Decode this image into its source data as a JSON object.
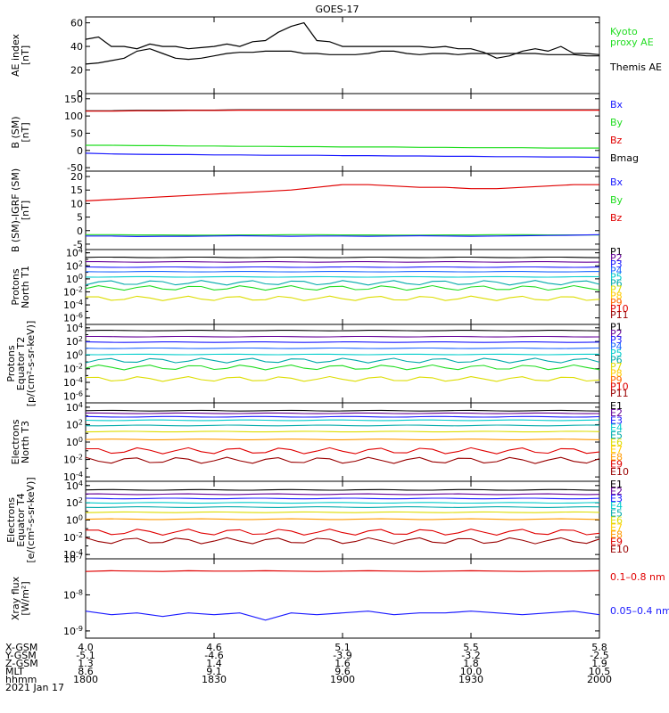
{
  "title": "GOES-17",
  "colors": {
    "black": "#000000",
    "blue": "#1a1aff",
    "green": "#22dd22",
    "red": "#e00000",
    "darkred": "#990000",
    "yellow": "#dddd00",
    "cyan": "#00cccc",
    "orange": "#ff9900",
    "purple": "#660099",
    "navy": "#000099",
    "teal": "#00aaaa"
  },
  "panels": [
    {
      "id": "ae",
      "ylabel": [
        "AE index",
        "[nT]"
      ],
      "ticks": [
        "60",
        "40",
        "20",
        "0"
      ],
      "tick_values": [
        60,
        40,
        20,
        0
      ],
      "ylim": [
        0,
        65
      ],
      "scale": "linear",
      "legend": [
        {
          "text": "Kyoto",
          "color": "#22dd22"
        },
        {
          "text": "proxy AE",
          "color": "#22dd22"
        },
        {
          "text": "Themis AE",
          "color": "#000000"
        }
      ]
    },
    {
      "id": "bsm",
      "ylabel": [
        "B (SM)",
        "[nT]"
      ],
      "ticks": [
        "150",
        "100",
        "50",
        "0",
        "-50"
      ],
      "tick_values": [
        150,
        100,
        50,
        0,
        -50
      ],
      "ylim": [
        -60,
        165
      ],
      "scale": "linear",
      "legend": [
        {
          "text": "Bx",
          "color": "#1a1aff"
        },
        {
          "text": "By",
          "color": "#22dd22"
        },
        {
          "text": "Bz",
          "color": "#e00000"
        },
        {
          "text": "Bmag",
          "color": "#000000"
        }
      ]
    },
    {
      "id": "bigrf",
      "ylabel": [
        "B (SM)-IGRF (SM)",
        "[nT]"
      ],
      "ticks": [
        "20",
        "15",
        "10",
        "5",
        "0",
        "-5"
      ],
      "tick_values": [
        20,
        15,
        10,
        5,
        0,
        -5
      ],
      "ylim": [
        -7,
        22
      ],
      "scale": "linear",
      "legend": [
        {
          "text": "Bx",
          "color": "#1a1aff"
        },
        {
          "text": "By",
          "color": "#22dd22"
        },
        {
          "text": "Bz",
          "color": "#e00000"
        }
      ]
    },
    {
      "id": "pnorth",
      "ylabel": [
        "Protons",
        "North T1"
      ],
      "ticks": [
        "10^4",
        "10^2",
        "10^0",
        "10^-2",
        "10^-4",
        "10^-6"
      ],
      "tick_values": [
        4,
        2,
        0,
        -2,
        -4,
        -6
      ],
      "ylim": [
        -7,
        4.5
      ],
      "scale": "log",
      "legend": [
        {
          "text": "P1",
          "color": "#000000"
        },
        {
          "text": "P2",
          "color": "#660099"
        },
        {
          "text": "P3",
          "color": "#1a1aff"
        },
        {
          "text": "P4",
          "color": "#1a66ff"
        },
        {
          "text": "P5",
          "color": "#00cccc"
        },
        {
          "text": "P6",
          "color": "#00aaaa"
        },
        {
          "text": "P7",
          "color": "#dddd00"
        },
        {
          "text": "P8",
          "color": "#ffcc00"
        },
        {
          "text": "P9",
          "color": "#ff6600"
        },
        {
          "text": "P10",
          "color": "#e00000"
        },
        {
          "text": "P11",
          "color": "#990000"
        }
      ]
    },
    {
      "id": "peq",
      "ylabel": [
        "Protons",
        "Equator T2",
        "[p/(cm²-s-sr-keV)]"
      ],
      "ticks": [
        "10^4",
        "10^2",
        "10^0",
        "10^-2",
        "10^-4",
        "10^-6"
      ],
      "tick_values": [
        4,
        2,
        0,
        -2,
        -4,
        -6
      ],
      "ylim": [
        -7,
        4.5
      ],
      "scale": "log",
      "legend": [
        {
          "text": "P1",
          "color": "#000000"
        },
        {
          "text": "P2",
          "color": "#660099"
        },
        {
          "text": "P3",
          "color": "#1a1aff"
        },
        {
          "text": "P4",
          "color": "#1a66ff"
        },
        {
          "text": "P5",
          "color": "#00cccc"
        },
        {
          "text": "P6",
          "color": "#00aaaa"
        },
        {
          "text": "P7",
          "color": "#dddd00"
        },
        {
          "text": "P8",
          "color": "#ffcc00"
        },
        {
          "text": "P9",
          "color": "#ff6600"
        },
        {
          "text": "P10",
          "color": "#e00000"
        },
        {
          "text": "P11",
          "color": "#990000"
        }
      ]
    },
    {
      "id": "enorth",
      "ylabel": [
        "Electrons",
        "North T3"
      ],
      "ticks": [
        "10^4",
        "10^2",
        "10^0",
        "10^-2",
        "10^-4"
      ],
      "tick_values": [
        4,
        2,
        0,
        -2,
        -4
      ],
      "ylim": [
        -4.5,
        4.5
      ],
      "scale": "log",
      "legend": [
        {
          "text": "E1",
          "color": "#000000"
        },
        {
          "text": "E2",
          "color": "#660099"
        },
        {
          "text": "E3",
          "color": "#1a1aff"
        },
        {
          "text": "E4",
          "color": "#00cccc"
        },
        {
          "text": "E5",
          "color": "#00aaaa"
        },
        {
          "text": "E6",
          "color": "#dddd00"
        },
        {
          "text": "E7",
          "color": "#ffcc00"
        },
        {
          "text": "E8",
          "color": "#ff9900"
        },
        {
          "text": "E9",
          "color": "#e00000"
        },
        {
          "text": "E10",
          "color": "#990000"
        }
      ]
    },
    {
      "id": "eeq",
      "ylabel": [
        "Electrons",
        "Equator T4",
        "[e/(cm²-s-sr-keV)]"
      ],
      "ticks": [
        "10^4",
        "10^2",
        "10^0",
        "10^-2",
        "10^-4"
      ],
      "tick_values": [
        4,
        2,
        0,
        -2,
        -4
      ],
      "ylim": [
        -4.5,
        4.5
      ],
      "scale": "log",
      "legend": [
        {
          "text": "E1",
          "color": "#000000"
        },
        {
          "text": "E2",
          "color": "#660099"
        },
        {
          "text": "E3",
          "color": "#1a1aff"
        },
        {
          "text": "E4",
          "color": "#00cccc"
        },
        {
          "text": "E5",
          "color": "#00aaaa"
        },
        {
          "text": "E6",
          "color": "#dddd00"
        },
        {
          "text": "E7",
          "color": "#ffcc00"
        },
        {
          "text": "E8",
          "color": "#ff9900"
        },
        {
          "text": "E9",
          "color": "#e00000"
        },
        {
          "text": "E10",
          "color": "#990000"
        }
      ]
    },
    {
      "id": "xray",
      "ylabel": [
        "Xray flux",
        "[W/m²]"
      ],
      "ticks": [
        "10^-7",
        "10^-8",
        "10^-9"
      ],
      "tick_values": [
        -7,
        -8,
        -9
      ],
      "ylim": [
        -9.2,
        -7
      ],
      "scale": "log",
      "legend": [
        {
          "text": "0.1–0.8 nm",
          "color": "#e00000"
        },
        {
          "text": "0.05–0.4 nm",
          "color": "#1a1aff"
        }
      ]
    }
  ],
  "xaxis": {
    "rows": [
      {
        "label": "X-GSM",
        "values": [
          "4.0",
          "4.6",
          "5.1",
          "5.5",
          "5.8"
        ]
      },
      {
        "label": "Y-GSM",
        "values": [
          "-5.1",
          "-4.6",
          "-3.9",
          "-3.2",
          "-2.5"
        ]
      },
      {
        "label": "Z-GSM",
        "values": [
          "1.3",
          "1.4",
          "1.6",
          "1.8",
          "1.9"
        ]
      },
      {
        "label": "MLT",
        "values": [
          "8.6",
          "9.1",
          "9.6",
          "10.0",
          "10.5"
        ]
      },
      {
        "label": "hhmm",
        "values": [
          "1800",
          "1830",
          "1900",
          "1930",
          "2000"
        ]
      }
    ],
    "date": "2021 Jan 17"
  },
  "chart_data": {
    "type": "line",
    "title": "GOES-17",
    "x_time_range": [
      "1800",
      "2000"
    ],
    "series": [
      {
        "name": "Kyoto proxy AE",
        "panel": "ae",
        "values": [
          46,
          48,
          40,
          40,
          38,
          42,
          40,
          40,
          38,
          39,
          40,
          42,
          40,
          44,
          45,
          52,
          57,
          60,
          45,
          44,
          40,
          40,
          40,
          40,
          40,
          40,
          40,
          39,
          40,
          38,
          38,
          35,
          30,
          32,
          36,
          38,
          36,
          40,
          34,
          34,
          33
        ]
      },
      {
        "name": "Themis AE",
        "panel": "ae",
        "values": [
          25,
          26,
          28,
          30,
          36,
          38,
          34,
          30,
          29,
          30,
          32,
          34,
          35,
          35,
          36,
          36,
          36,
          34,
          34,
          33,
          33,
          33,
          34,
          36,
          36,
          34,
          33,
          34,
          34,
          33,
          34,
          34,
          34,
          34,
          34,
          34,
          33,
          33,
          33,
          32,
          32
        ]
      },
      {
        "name": "Bmag",
        "panel": "bsm",
        "values": [
          115,
          115,
          116,
          116,
          117,
          117,
          118,
          118,
          118,
          118,
          118,
          118,
          118,
          118,
          118,
          118,
          118,
          118,
          118,
          118,
          118
        ]
      },
      {
        "name": "Bz",
        "panel": "bsm",
        "values": [
          114,
          114,
          115,
          115,
          116,
          116,
          117,
          117,
          117,
          117,
          117,
          117,
          117,
          117,
          117,
          117,
          117,
          117,
          117,
          117,
          117
        ]
      },
      {
        "name": "By",
        "panel": "bsm",
        "values": [
          15,
          15,
          14,
          14,
          13,
          13,
          12,
          12,
          11,
          11,
          10,
          10,
          10,
          9,
          9,
          8,
          8,
          8,
          7,
          7,
          7
        ]
      },
      {
        "name": "Bx",
        "panel": "bsm",
        "values": [
          -8,
          -10,
          -11,
          -12,
          -12,
          -13,
          -13,
          -14,
          -14,
          -14,
          -15,
          -15,
          -16,
          -16,
          -17,
          -17,
          -18,
          -18,
          -19,
          -19,
          -20
        ]
      },
      {
        "name": "Bz",
        "panel": "bigrf",
        "values": [
          11,
          11.5,
          12,
          12.5,
          13,
          13.5,
          14,
          14.5,
          15,
          16,
          17,
          17,
          16.5,
          16,
          16,
          15.5,
          15.5,
          16,
          16.5,
          17,
          17
        ]
      },
      {
        "name": "By",
        "panel": "bigrf",
        "values": [
          -1.5,
          -1.5,
          -1.6,
          -1.6,
          -1.7,
          -1.7,
          -1.6,
          -1.6,
          -1.5,
          -1.5,
          -1.6,
          -1.6,
          -1.7,
          -1.7,
          -1.6,
          -1.6,
          -1.5,
          -1.5,
          -1.6,
          -1.6,
          -1.6
        ]
      },
      {
        "name": "Bx",
        "panel": "bigrf",
        "values": [
          -2,
          -2,
          -2.2,
          -2.1,
          -2.1,
          -2.0,
          -1.9,
          -2.0,
          -2.1,
          -2.0,
          -2.0,
          -2.1,
          -2.0,
          -1.9,
          -2.0,
          -2.1,
          -2.0,
          -1.9,
          -1.8,
          -1.7,
          -1.5
        ]
      },
      {
        "name": "0.1–0.8 nm",
        "panel": "xray",
        "values": [
          -7.35,
          -7.33,
          -7.34,
          -7.35,
          -7.33,
          -7.34,
          -7.34,
          -7.33,
          -7.34,
          -7.35,
          -7.34,
          -7.33,
          -7.34,
          -7.35,
          -7.34,
          -7.33,
          -7.34,
          -7.35,
          -7.34,
          -7.34,
          -7.33
        ]
      },
      {
        "name": "0.05–0.4 nm",
        "panel": "xray",
        "values": [
          -8.45,
          -8.55,
          -8.5,
          -8.6,
          -8.5,
          -8.55,
          -8.5,
          -8.7,
          -8.5,
          -8.55,
          -8.5,
          -8.45,
          -8.55,
          -8.5,
          -8.5,
          -8.45,
          -8.5,
          -8.55,
          -8.5,
          -8.45,
          -8.55
        ]
      }
    ]
  }
}
